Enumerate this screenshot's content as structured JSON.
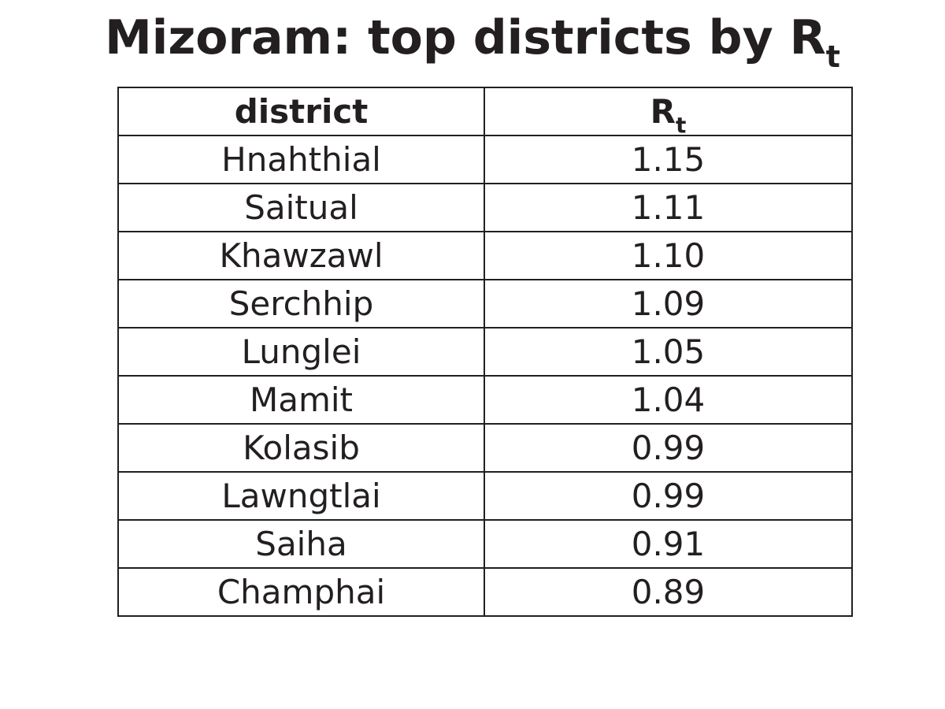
{
  "title": {
    "main": "Mizoram: top districts by R",
    "subscript": "t"
  },
  "chart_data": {
    "type": "table",
    "columns": [
      {
        "label": "district",
        "subscript": ""
      },
      {
        "label": "R",
        "subscript": "t"
      }
    ],
    "rows": [
      {
        "district": "Hnahthial",
        "rt": "1.15"
      },
      {
        "district": "Saitual",
        "rt": "1.11"
      },
      {
        "district": "Khawzawl",
        "rt": "1.10"
      },
      {
        "district": "Serchhip",
        "rt": "1.09"
      },
      {
        "district": "Lunglei",
        "rt": "1.05"
      },
      {
        "district": "Mamit",
        "rt": "1.04"
      },
      {
        "district": "Kolasib",
        "rt": "0.99"
      },
      {
        "district": "Lawngtlai",
        "rt": "0.99"
      },
      {
        "district": "Saiha",
        "rt": "0.91"
      },
      {
        "district": "Champhai",
        "rt": "0.89"
      }
    ]
  }
}
